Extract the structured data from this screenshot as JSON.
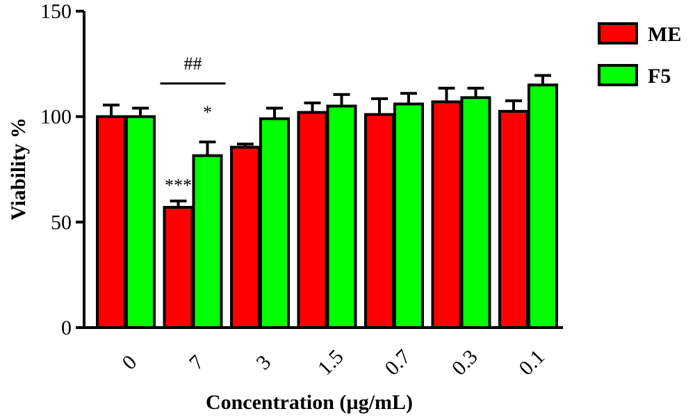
{
  "chart_data": {
    "type": "bar",
    "xlabel": "Concentration (µg/mL)",
    "ylabel": "Viability %",
    "ylim": [
      0,
      150
    ],
    "yticks": [
      0,
      50,
      100,
      150
    ],
    "categories": [
      "0",
      "7",
      "3",
      "1.5",
      "0.7",
      "0.3",
      "0.1"
    ],
    "series": [
      {
        "name": "ME",
        "color": "#ff0000",
        "values": [
          100,
          57,
          85.5,
          102,
          101,
          107,
          102.5
        ],
        "errors": [
          5.5,
          3,
          1.5,
          4.5,
          7.5,
          6.5,
          5
        ]
      },
      {
        "name": "F5",
        "color": "#00ff00",
        "values": [
          100,
          81.5,
          99,
          105,
          106,
          109,
          115
        ],
        "errors": [
          4,
          6.5,
          5,
          5.5,
          5,
          4.5,
          4.5
        ]
      }
    ],
    "legend_position": "top-right",
    "annotations": [
      {
        "text": "***",
        "category": "7",
        "series": "ME"
      },
      {
        "text": "*",
        "category": "7",
        "series": "F5"
      },
      {
        "text": "##",
        "category": "7",
        "bracket": true
      }
    ]
  }
}
